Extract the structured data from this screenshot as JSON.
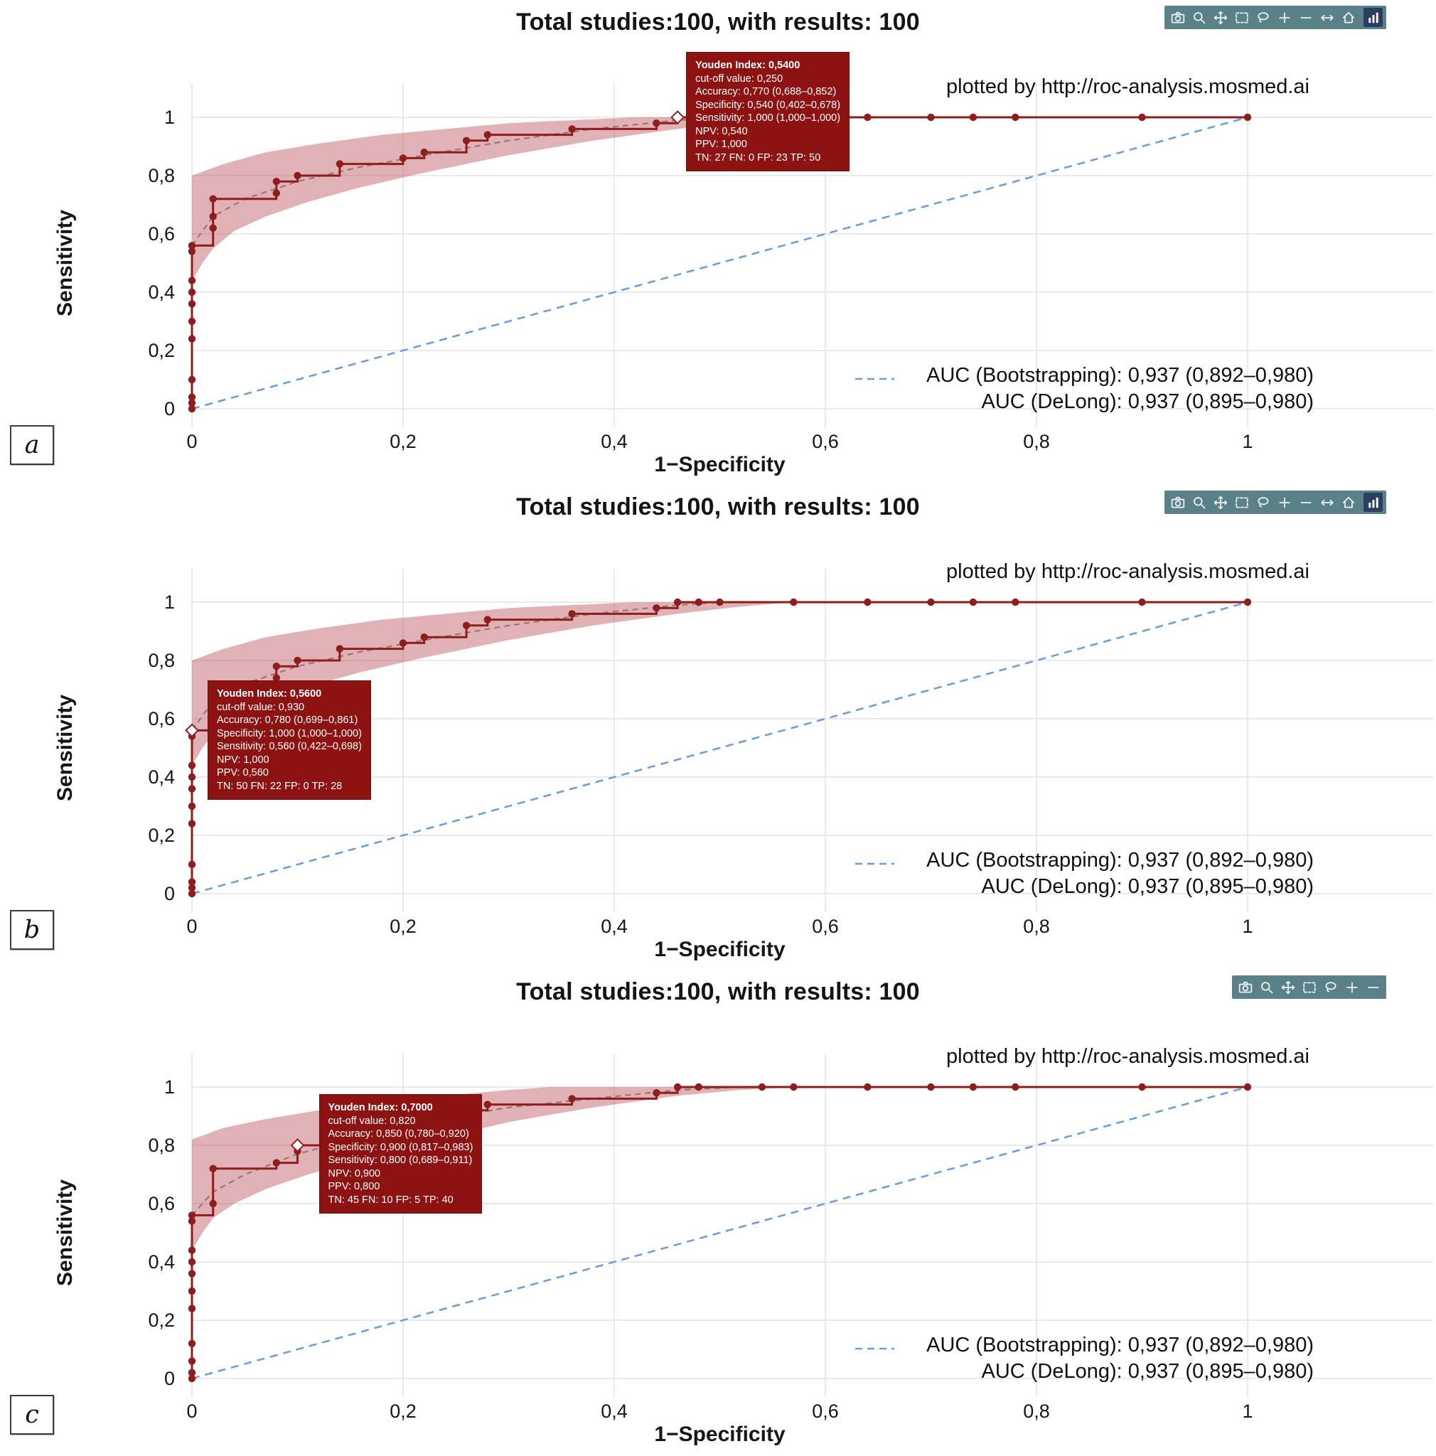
{
  "colors": {
    "roc": "#8e1e1e",
    "band": "#b8474f",
    "fit": "#9a6b6e",
    "diagonal": "#6b9bd8",
    "grid": "#e4e4e4",
    "tooltip_bg": "#8d1313",
    "modebar_bg": "#5a8187",
    "modebar_icon": "#ecf3f4",
    "logo_bg": "#2a3f5f"
  },
  "panels": [
    {
      "label": "a",
      "modebar": [
        "camera-icon",
        "zoom-icon",
        "pan-icon",
        "box-select-icon",
        "lasso-icon",
        "zoom-in-icon",
        "zoom-out-icon",
        "autoscale-icon",
        "home-icon",
        "plotly-logo-icon"
      ]
    },
    {
      "label": "b",
      "modebar": [
        "camera-icon",
        "zoom-icon",
        "pan-icon",
        "box-select-icon",
        "lasso-icon",
        "zoom-in-icon",
        "zoom-out-icon",
        "autoscale-icon",
        "home-icon",
        "plotly-logo-icon"
      ]
    },
    {
      "label": "c",
      "modebar": [
        "camera-icon",
        "zoom-icon",
        "pan-icon",
        "box-select-icon",
        "lasso-icon",
        "zoom-in-icon",
        "zoom-out-icon"
      ]
    }
  ],
  "chart_data": [
    {
      "type": "line",
      "title": "Total studies:100, with results: 100",
      "xlabel": "1−Specificity",
      "ylabel": "Sensitivity",
      "plotted_by": "plotted by http://roc-analysis.mosmed.ai",
      "auc_bootstrapping": "AUC (Bootstrapping): 0,937 (0,892–0,980)",
      "auc_delong": "AUC (DeLong): 0,937 (0,895–0,980)",
      "xlim": [
        0,
        1.17
      ],
      "ylim": [
        -0.06,
        1.12
      ],
      "grid": true,
      "legend_position": "none",
      "xticks": {
        "values": [
          0,
          0.2,
          0.4,
          0.6,
          0.8,
          1
        ],
        "labels": [
          "0",
          "0,2",
          "0,4",
          "0,6",
          "0,8",
          "1"
        ]
      },
      "yticks": {
        "values": [
          0,
          0.2,
          0.4,
          0.6,
          0.8,
          1
        ],
        "labels": [
          "0",
          "0,2",
          "0,4",
          "0,6",
          "0,8",
          "1"
        ]
      },
      "roc_points": [
        [
          0,
          0
        ],
        [
          0,
          0.02
        ],
        [
          0,
          0.04
        ],
        [
          0,
          0.1
        ],
        [
          0,
          0.24
        ],
        [
          0,
          0.3
        ],
        [
          0,
          0.36
        ],
        [
          0,
          0.4
        ],
        [
          0,
          0.44
        ],
        [
          0,
          0.54
        ],
        [
          0,
          0.56
        ],
        [
          0.02,
          0.62
        ],
        [
          0.02,
          0.66
        ],
        [
          0.02,
          0.72
        ],
        [
          0.08,
          0.74
        ],
        [
          0.08,
          0.78
        ],
        [
          0.1,
          0.8
        ],
        [
          0.14,
          0.84
        ],
        [
          0.2,
          0.86
        ],
        [
          0.22,
          0.88
        ],
        [
          0.26,
          0.92
        ],
        [
          0.28,
          0.94
        ],
        [
          0.36,
          0.96
        ],
        [
          0.44,
          0.98
        ],
        [
          0.46,
          1
        ],
        [
          0.48,
          1
        ],
        [
          0.64,
          1
        ],
        [
          0.7,
          1
        ],
        [
          0.74,
          1
        ],
        [
          0.78,
          1
        ],
        [
          0.9,
          1
        ],
        [
          1,
          1
        ]
      ],
      "fit_line": [
        [
          0,
          0.56
        ],
        [
          0.02,
          0.66
        ],
        [
          0.05,
          0.72
        ],
        [
          0.1,
          0.78
        ],
        [
          0.16,
          0.83
        ],
        [
          0.22,
          0.87
        ],
        [
          0.3,
          0.92
        ],
        [
          0.38,
          0.96
        ],
        [
          0.46,
          0.99
        ],
        [
          0.5,
          1
        ]
      ],
      "band_upper": [
        [
          0,
          0.8
        ],
        [
          0.03,
          0.84
        ],
        [
          0.07,
          0.88
        ],
        [
          0.12,
          0.91
        ],
        [
          0.18,
          0.94
        ],
        [
          0.24,
          0.96
        ],
        [
          0.3,
          0.98
        ],
        [
          0.36,
          0.99
        ],
        [
          0.42,
          1
        ]
      ],
      "band_lower": [
        [
          0,
          0.44
        ],
        [
          0.01,
          0.5
        ],
        [
          0.02,
          0.55
        ],
        [
          0.04,
          0.61
        ],
        [
          0.07,
          0.66
        ],
        [
          0.11,
          0.71
        ],
        [
          0.16,
          0.76
        ],
        [
          0.22,
          0.81
        ],
        [
          0.3,
          0.87
        ],
        [
          0.38,
          0.92
        ],
        [
          0.46,
          0.96
        ],
        [
          0.52,
          0.985
        ],
        [
          0.57,
          1
        ]
      ],
      "diagonal": [
        [
          0,
          0
        ],
        [
          1,
          1
        ]
      ],
      "tooltip": {
        "anchor": [
          0.46,
          1
        ],
        "offset": [
          12,
          -92
        ],
        "lines": [
          "Youden Index: 0,5400",
          "cut-off value: 0,250",
          "Accuracy: 0,770 (0,688–0,852)",
          "Specificity: 0,540 (0,402–0,678)",
          "Sensitivity: 1,000 (1,000–1,000)",
          "NPV: 0,540",
          "PPV: 1,000",
          "TN: 27 FN: 0 FP: 23 TP: 50"
        ]
      }
    },
    {
      "type": "line",
      "title": "Total studies:100, with results: 100",
      "xlabel": "1−Specificity",
      "ylabel": "Sensitivity",
      "plotted_by": "plotted by http://roc-analysis.mosmed.ai",
      "auc_bootstrapping": "AUC (Bootstrapping): 0,937 (0,892–0,980)",
      "auc_delong": "AUC (DeLong): 0,937 (0,895–0,980)",
      "xlim": [
        0,
        1.17
      ],
      "ylim": [
        -0.06,
        1.12
      ],
      "grid": true,
      "legend_position": "none",
      "xticks": {
        "values": [
          0,
          0.2,
          0.4,
          0.6,
          0.8,
          1
        ],
        "labels": [
          "0",
          "0,2",
          "0,4",
          "0,6",
          "0,8",
          "1"
        ]
      },
      "yticks": {
        "values": [
          0,
          0.2,
          0.4,
          0.6,
          0.8,
          1
        ],
        "labels": [
          "0",
          "0,2",
          "0,4",
          "0,6",
          "0,8",
          "1"
        ]
      },
      "roc_points": [
        [
          0,
          0
        ],
        [
          0,
          0.02
        ],
        [
          0,
          0.04
        ],
        [
          0,
          0.1
        ],
        [
          0,
          0.24
        ],
        [
          0,
          0.3
        ],
        [
          0,
          0.36
        ],
        [
          0,
          0.4
        ],
        [
          0,
          0.44
        ],
        [
          0,
          0.54
        ],
        [
          0,
          0.56
        ],
        [
          0.02,
          0.62
        ],
        [
          0.02,
          0.66
        ],
        [
          0.02,
          0.72
        ],
        [
          0.08,
          0.74
        ],
        [
          0.08,
          0.78
        ],
        [
          0.1,
          0.8
        ],
        [
          0.14,
          0.84
        ],
        [
          0.2,
          0.86
        ],
        [
          0.22,
          0.88
        ],
        [
          0.26,
          0.92
        ],
        [
          0.28,
          0.94
        ],
        [
          0.36,
          0.96
        ],
        [
          0.44,
          0.98
        ],
        [
          0.46,
          1
        ],
        [
          0.48,
          1
        ],
        [
          0.5,
          1
        ],
        [
          0.57,
          1
        ],
        [
          0.64,
          1
        ],
        [
          0.7,
          1
        ],
        [
          0.74,
          1
        ],
        [
          0.78,
          1
        ],
        [
          0.9,
          1
        ],
        [
          1,
          1
        ]
      ],
      "fit_line": [
        [
          0,
          0.56
        ],
        [
          0.02,
          0.66
        ],
        [
          0.05,
          0.72
        ],
        [
          0.1,
          0.78
        ],
        [
          0.16,
          0.83
        ],
        [
          0.22,
          0.87
        ],
        [
          0.3,
          0.92
        ],
        [
          0.38,
          0.96
        ],
        [
          0.46,
          0.99
        ],
        [
          0.5,
          1
        ]
      ],
      "band_upper": [
        [
          0,
          0.8
        ],
        [
          0.03,
          0.84
        ],
        [
          0.07,
          0.88
        ],
        [
          0.12,
          0.91
        ],
        [
          0.18,
          0.94
        ],
        [
          0.24,
          0.96
        ],
        [
          0.3,
          0.98
        ],
        [
          0.36,
          0.99
        ],
        [
          0.42,
          1
        ]
      ],
      "band_lower": [
        [
          0,
          0.44
        ],
        [
          0.01,
          0.5
        ],
        [
          0.02,
          0.55
        ],
        [
          0.04,
          0.61
        ],
        [
          0.07,
          0.66
        ],
        [
          0.11,
          0.71
        ],
        [
          0.16,
          0.76
        ],
        [
          0.22,
          0.81
        ],
        [
          0.3,
          0.87
        ],
        [
          0.38,
          0.92
        ],
        [
          0.46,
          0.96
        ],
        [
          0.52,
          0.985
        ],
        [
          0.57,
          1
        ]
      ],
      "diagonal": [
        [
          0,
          0
        ],
        [
          1,
          1
        ]
      ],
      "tooltip": {
        "anchor": [
          0,
          0.56
        ],
        "offset": [
          22,
          -70
        ],
        "lines": [
          "Youden Index: 0,5600",
          "cut-off value: 0,930",
          "Accuracy: 0,780 (0,699–0,861)",
          "Specificity: 1,000 (1,000–1,000)",
          "Sensitivity: 0,560 (0,422–0,698)",
          "NPV: 1,000",
          "PPV: 0,560",
          "TN: 50 FN: 22 FP: 0 TP: 28"
        ]
      }
    },
    {
      "type": "line",
      "title": "Total studies:100, with results: 100",
      "xlabel": "1−Specificity",
      "ylabel": "Sensitivity",
      "plotted_by": "plotted by http://roc-analysis.mosmed.ai",
      "auc_bootstrapping": "AUC (Bootstrapping): 0,937 (0,892–0,980)",
      "auc_delong": "AUC (DeLong): 0,937 (0,895–0,980)",
      "xlim": [
        0,
        1.17
      ],
      "ylim": [
        -0.06,
        1.12
      ],
      "grid": true,
      "legend_position": "none",
      "xticks": {
        "values": [
          0,
          0.2,
          0.4,
          0.6,
          0.8,
          1
        ],
        "labels": [
          "0",
          "0,2",
          "0,4",
          "0,6",
          "0,8",
          "1"
        ]
      },
      "yticks": {
        "values": [
          0,
          0.2,
          0.4,
          0.6,
          0.8,
          1
        ],
        "labels": [
          "0",
          "0,2",
          "0,4",
          "0,6",
          "0,8",
          "1"
        ]
      },
      "roc_points": [
        [
          0,
          0
        ],
        [
          0,
          0.02
        ],
        [
          0,
          0.06
        ],
        [
          0,
          0.12
        ],
        [
          0,
          0.24
        ],
        [
          0,
          0.3
        ],
        [
          0,
          0.36
        ],
        [
          0,
          0.4
        ],
        [
          0,
          0.44
        ],
        [
          0,
          0.54
        ],
        [
          0,
          0.56
        ],
        [
          0.02,
          0.6
        ],
        [
          0.02,
          0.72
        ],
        [
          0.08,
          0.74
        ],
        [
          0.1,
          0.78
        ],
        [
          0.1,
          0.8
        ],
        [
          0.14,
          0.84
        ],
        [
          0.18,
          0.88
        ],
        [
          0.26,
          0.92
        ],
        [
          0.28,
          0.94
        ],
        [
          0.36,
          0.96
        ],
        [
          0.44,
          0.98
        ],
        [
          0.46,
          1
        ],
        [
          0.48,
          1
        ],
        [
          0.54,
          1
        ],
        [
          0.57,
          1
        ],
        [
          0.64,
          1
        ],
        [
          0.7,
          1
        ],
        [
          0.74,
          1
        ],
        [
          0.78,
          1
        ],
        [
          0.9,
          1
        ],
        [
          1,
          1
        ]
      ],
      "fit_line": [
        [
          0,
          0.56
        ],
        [
          0.02,
          0.64
        ],
        [
          0.05,
          0.7
        ],
        [
          0.1,
          0.77
        ],
        [
          0.16,
          0.83
        ],
        [
          0.22,
          0.88
        ],
        [
          0.3,
          0.93
        ],
        [
          0.38,
          0.96
        ],
        [
          0.46,
          0.99
        ],
        [
          0.52,
          1
        ]
      ],
      "band_upper": [
        [
          0,
          0.82
        ],
        [
          0.03,
          0.86
        ],
        [
          0.07,
          0.89
        ],
        [
          0.12,
          0.92
        ],
        [
          0.18,
          0.95
        ],
        [
          0.24,
          0.97
        ],
        [
          0.3,
          0.99
        ],
        [
          0.34,
          1
        ]
      ],
      "band_lower": [
        [
          0,
          0.44
        ],
        [
          0.01,
          0.5
        ],
        [
          0.02,
          0.55
        ],
        [
          0.04,
          0.6
        ],
        [
          0.07,
          0.65
        ],
        [
          0.11,
          0.7
        ],
        [
          0.16,
          0.75
        ],
        [
          0.22,
          0.81
        ],
        [
          0.3,
          0.88
        ],
        [
          0.38,
          0.93
        ],
        [
          0.46,
          0.97
        ],
        [
          0.52,
          0.99
        ],
        [
          0.57,
          1
        ]
      ],
      "diagonal": [
        [
          0,
          0
        ],
        [
          1,
          1
        ]
      ],
      "tooltip": {
        "anchor": [
          0.1,
          0.8
        ],
        "offset": [
          30,
          -72
        ],
        "lines": [
          "Youden Index: 0,7000",
          "cut-off value: 0,820",
          "Accuracy: 0,850 (0,780–0,920)",
          "Specificity: 0,900 (0,817–0,983)",
          "Sensitivity: 0,800 (0,689–0,911)",
          "NPV: 0,900",
          "PPV: 0,800",
          "TN: 45 FN: 10 FP: 5 TP: 40"
        ]
      }
    }
  ]
}
